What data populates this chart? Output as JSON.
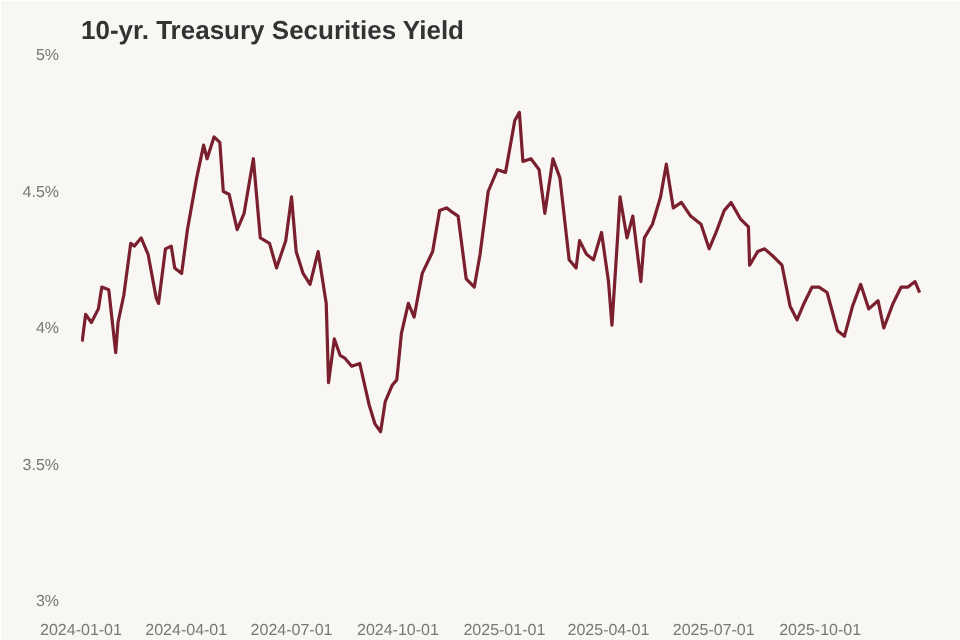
{
  "chart_data": {
    "type": "line",
    "title": "10-yr. Treasury Securities Yield",
    "x": [
      "2024-01-02",
      "2024-01-05",
      "2024-01-10",
      "2024-01-16",
      "2024-01-19",
      "2024-01-25",
      "2024-01-31",
      "2024-02-02",
      "2024-02-07",
      "2024-02-13",
      "2024-02-16",
      "2024-02-22",
      "2024-02-28",
      "2024-03-06",
      "2024-03-08",
      "2024-03-14",
      "2024-03-19",
      "2024-03-22",
      "2024-03-28",
      "2024-04-02",
      "2024-04-10",
      "2024-04-16",
      "2024-04-19",
      "2024-04-25",
      "2024-04-30",
      "2024-05-03",
      "2024-05-08",
      "2024-05-15",
      "2024-05-21",
      "2024-05-29",
      "2024-06-04",
      "2024-06-12",
      "2024-06-18",
      "2024-06-26",
      "2024-07-01",
      "2024-07-05",
      "2024-07-11",
      "2024-07-17",
      "2024-07-24",
      "2024-07-31",
      "2024-08-02",
      "2024-08-07",
      "2024-08-12",
      "2024-08-16",
      "2024-08-22",
      "2024-08-29",
      "2024-09-06",
      "2024-09-11",
      "2024-09-16",
      "2024-09-20",
      "2024-09-26",
      "2024-09-30",
      "2024-10-04",
      "2024-10-10",
      "2024-10-15",
      "2024-10-22",
      "2024-10-31",
      "2024-11-06",
      "2024-11-12",
      "2024-11-15",
      "2024-11-22",
      "2024-11-29",
      "2024-12-06",
      "2024-12-11",
      "2024-12-18",
      "2024-12-26",
      "2025-01-02",
      "2025-01-10",
      "2025-01-14",
      "2025-01-17",
      "2025-01-24",
      "2025-01-31",
      "2025-02-05",
      "2025-02-12",
      "2025-02-18",
      "2025-02-26",
      "2025-03-04",
      "2025-03-07",
      "2025-03-13",
      "2025-03-19",
      "2025-03-26",
      "2025-04-01",
      "2025-04-04",
      "2025-04-09",
      "2025-04-11",
      "2025-04-17",
      "2025-04-22",
      "2025-04-29",
      "2025-05-02",
      "2025-05-09",
      "2025-05-16",
      "2025-05-21",
      "2025-05-27",
      "2025-06-03",
      "2025-06-11",
      "2025-06-20",
      "2025-06-27",
      "2025-07-03",
      "2025-07-10",
      "2025-07-16",
      "2025-07-24",
      "2025-07-31",
      "2025-08-01",
      "2025-08-08",
      "2025-08-14",
      "2025-08-22",
      "2025-08-29",
      "2025-09-05",
      "2025-09-11",
      "2025-09-17",
      "2025-09-24",
      "2025-09-30",
      "2025-10-07",
      "2025-10-16",
      "2025-10-22",
      "2025-10-29",
      "2025-11-05",
      "2025-11-12",
      "2025-11-20",
      "2025-11-25",
      "2025-12-03",
      "2025-12-10",
      "2025-12-16",
      "2025-12-22",
      "2025-12-26"
    ],
    "series": [
      {
        "color": "#7a1f2e",
        "values": [
          3.95,
          4.05,
          4.02,
          4.07,
          4.15,
          4.14,
          3.91,
          4.02,
          4.12,
          4.31,
          4.3,
          4.33,
          4.27,
          4.11,
          4.09,
          4.29,
          4.3,
          4.22,
          4.2,
          4.36,
          4.55,
          4.67,
          4.62,
          4.7,
          4.68,
          4.5,
          4.49,
          4.36,
          4.42,
          4.62,
          4.33,
          4.31,
          4.22,
          4.32,
          4.48,
          4.28,
          4.2,
          4.16,
          4.28,
          4.09,
          3.8,
          3.96,
          3.9,
          3.89,
          3.86,
          3.87,
          3.72,
          3.65,
          3.62,
          3.73,
          3.79,
          3.81,
          3.98,
          4.09,
          4.04,
          4.2,
          4.28,
          4.43,
          4.44,
          4.43,
          4.41,
          4.18,
          4.15,
          4.27,
          4.5,
          4.58,
          4.57,
          4.76,
          4.79,
          4.61,
          4.62,
          4.58,
          4.42,
          4.62,
          4.55,
          4.25,
          4.22,
          4.32,
          4.27,
          4.25,
          4.35,
          4.17,
          4.01,
          4.34,
          4.48,
          4.33,
          4.41,
          4.17,
          4.33,
          4.38,
          4.48,
          4.6,
          4.44,
          4.46,
          4.41,
          4.38,
          4.29,
          4.35,
          4.43,
          4.46,
          4.4,
          4.37,
          4.23,
          4.28,
          4.29,
          4.26,
          4.23,
          4.08,
          4.03,
          4.09,
          4.15,
          4.15,
          4.13,
          3.99,
          3.97,
          4.08,
          4.16,
          4.07,
          4.1,
          4.0,
          4.09,
          4.15,
          4.15,
          4.17,
          4.13
        ]
      }
    ],
    "xlim": [
      "2024-01-01",
      "2026-01-10"
    ],
    "xticks": [
      "2024-01-01",
      "2024-04-01",
      "2024-07-01",
      "2024-10-01",
      "2025-01-01",
      "2025-04-01",
      "2025-07-01",
      "2025-10-01"
    ],
    "ylim": [
      3,
      5
    ],
    "yticks": [
      {
        "value": 3,
        "label": "3%"
      },
      {
        "value": 3.5,
        "label": "3.5%"
      },
      {
        "value": 4,
        "label": "4%"
      },
      {
        "value": 4.5,
        "label": "4.5%"
      },
      {
        "value": 5,
        "label": "5%"
      }
    ],
    "grid": false
  }
}
